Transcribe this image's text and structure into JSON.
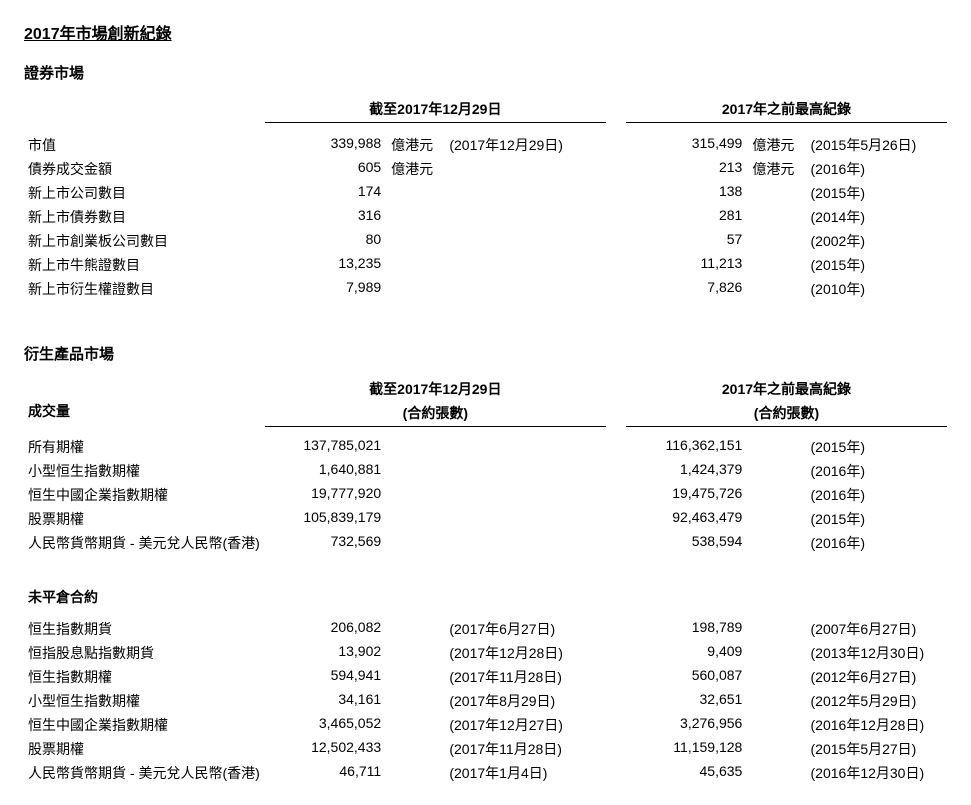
{
  "title": "2017年市場創新紀錄",
  "securities": {
    "heading": "證券市場",
    "header_left": "截至2017年12月29日",
    "header_right": "2017年之前最高紀錄",
    "rows": [
      {
        "label": "市值",
        "v1": "339,988",
        "u1": "億港元",
        "d1": "(2017年12月29日)",
        "v2": "315,499",
        "u2": "億港元",
        "d2": "(2015年5月26日)"
      },
      {
        "label": "債券成交金額",
        "v1": "605",
        "u1": "億港元",
        "d1": "",
        "v2": "213",
        "u2": "億港元",
        "d2": "(2016年)"
      },
      {
        "label": "新上市公司數目",
        "v1": "174",
        "u1": "",
        "d1": "",
        "v2": "138",
        "u2": "",
        "d2": "(2015年)"
      },
      {
        "label": "新上市債券數目",
        "v1": "316",
        "u1": "",
        "d1": "",
        "v2": "281",
        "u2": "",
        "d2": "(2014年)"
      },
      {
        "label": "新上市創業板公司數目",
        "v1": "80",
        "u1": "",
        "d1": "",
        "v2": "57",
        "u2": "",
        "d2": "(2002年)"
      },
      {
        "label": "新上市牛熊證數目",
        "v1": "13,235",
        "u1": "",
        "d1": "",
        "v2": "11,213",
        "u2": "",
        "d2": "(2015年)"
      },
      {
        "label": "新上市衍生權證數目",
        "v1": "7,989",
        "u1": "",
        "d1": "",
        "v2": "7,826",
        "u2": "",
        "d2": "(2010年)"
      }
    ]
  },
  "derivatives": {
    "heading": "衍生產品市場",
    "header_left": "截至2017年12月29日",
    "header_left_sub": "(合約張數)",
    "header_right": "2017年之前最高紀錄",
    "header_right_sub": "(合約張數)",
    "volume_title": "成交量",
    "volume_rows": [
      {
        "label": "所有期權",
        "v1": "137,785,021",
        "d1": "",
        "v2": "116,362,151",
        "d2": "(2015年)"
      },
      {
        "label": "小型恒生指數期權",
        "v1": "1,640,881",
        "d1": "",
        "v2": "1,424,379",
        "d2": "(2016年)"
      },
      {
        "label": "恒生中國企業指數期權",
        "v1": "19,777,920",
        "d1": "",
        "v2": "19,475,726",
        "d2": "(2016年)"
      },
      {
        "label": "股票期權",
        "v1": "105,839,179",
        "d1": "",
        "v2": "92,463,479",
        "d2": "(2015年)"
      },
      {
        "label": "人民幣貨幣期貨 - 美元兌人民幣(香港)",
        "v1": "732,569",
        "d1": "",
        "v2": "538,594",
        "d2": "(2016年)"
      }
    ],
    "oi_title": "未平倉合約",
    "oi_rows": [
      {
        "label": "恒生指數期貨",
        "v1": "206,082",
        "d1": "(2017年6月27日)",
        "v2": "198,789",
        "d2": "(2007年6月27日)"
      },
      {
        "label": "恒指股息點指數期貨",
        "v1": "13,902",
        "d1": "(2017年12月28日)",
        "v2": "9,409",
        "d2": "(2013年12月30日)"
      },
      {
        "label": "恒生指數期權",
        "v1": "594,941",
        "d1": "(2017年11月28日)",
        "v2": "560,087",
        "d2": "(2012年6月27日)"
      },
      {
        "label": "小型恒生指數期權",
        "v1": "34,161",
        "d1": "(2017年8月29日)",
        "v2": "32,651",
        "d2": "(2012年5月29日)"
      },
      {
        "label": "恒生中國企業指數期權",
        "v1": "3,465,052",
        "d1": "(2017年12月27日)",
        "v2": "3,276,956",
        "d2": "(2016年12月28日)"
      },
      {
        "label": "股票期權",
        "v1": "12,502,433",
        "d1": "(2017年11月28日)",
        "v2": "11,159,128",
        "d2": "(2015年5月27日)"
      },
      {
        "label": "人民幣貨幣期貨 - 美元兌人民幣(香港)",
        "v1": "46,711",
        "d1": "(2017年1月4日)",
        "v2": "45,635",
        "d2": "(2016年12月30日)"
      }
    ]
  },
  "colors": {
    "text": "#000000",
    "background": "#ffffff",
    "border": "#000000"
  }
}
